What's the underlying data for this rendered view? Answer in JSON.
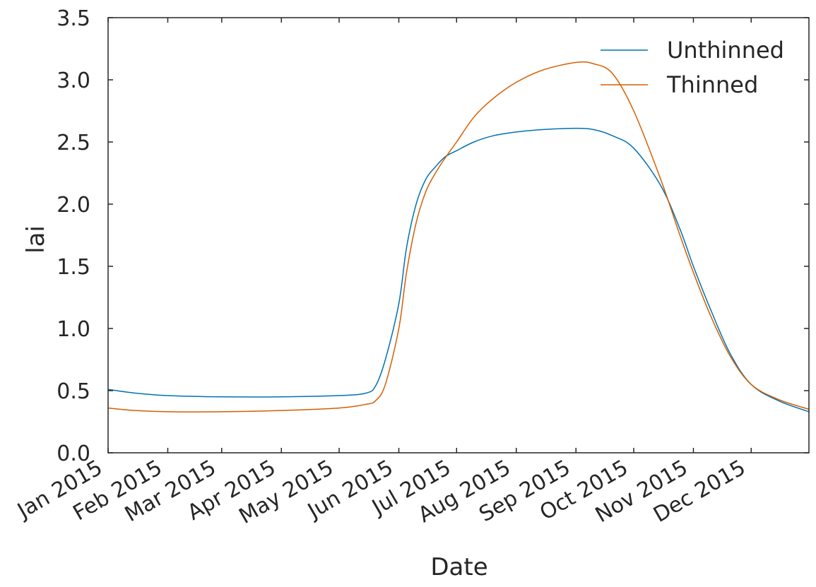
{
  "chart_data": {
    "type": "line",
    "xlabel": "Date",
    "ylabel": "lai",
    "xlim": [
      "2015-01-01",
      "2015-12-31"
    ],
    "ylim": [
      0,
      3.5
    ],
    "yticks": [
      0.0,
      0.5,
      1.0,
      1.5,
      2.0,
      2.5,
      3.0,
      3.5
    ],
    "ytick_labels": [
      "0.0",
      "0.5",
      "1.0",
      "1.5",
      "2.0",
      "2.5",
      "3.0",
      "3.5"
    ],
    "xticks": [
      "2015-01-01",
      "2015-02-01",
      "2015-03-01",
      "2015-04-01",
      "2015-05-01",
      "2015-06-01",
      "2015-07-01",
      "2015-08-01",
      "2015-09-01",
      "2015-10-01",
      "2015-11-01",
      "2015-12-01"
    ],
    "xtick_labels": [
      "Jan 2015",
      "Feb 2015",
      "Mar 2015",
      "Apr 2015",
      "May 2015",
      "Jun 2015",
      "Jul 2015",
      "Aug 2015",
      "Sep 2015",
      "Oct 2015",
      "Nov 2015",
      "Dec 2015"
    ],
    "legend_position": "top-right",
    "grid": false,
    "series": [
      {
        "name": "Unthinned",
        "color": "#0072b2",
        "x": [
          "2015-01-01",
          "2015-01-15",
          "2015-02-01",
          "2015-03-01",
          "2015-04-01",
          "2015-05-01",
          "2015-05-15",
          "2015-05-20",
          "2015-05-25",
          "2015-06-01",
          "2015-06-05",
          "2015-06-10",
          "2015-06-15",
          "2015-06-20",
          "2015-06-25",
          "2015-07-01",
          "2015-07-10",
          "2015-07-20",
          "2015-08-01",
          "2015-08-15",
          "2015-09-01",
          "2015-09-10",
          "2015-09-20",
          "2015-10-01",
          "2015-10-15",
          "2015-10-25",
          "2015-11-01",
          "2015-11-10",
          "2015-11-20",
          "2015-12-01",
          "2015-12-15",
          "2015-12-31"
        ],
        "y": [
          0.51,
          0.48,
          0.46,
          0.45,
          0.45,
          0.46,
          0.48,
          0.54,
          0.75,
          1.2,
          1.65,
          2.0,
          2.2,
          2.3,
          2.38,
          2.43,
          2.5,
          2.55,
          2.58,
          2.6,
          2.61,
          2.6,
          2.55,
          2.45,
          2.15,
          1.8,
          1.5,
          1.15,
          0.8,
          0.55,
          0.42,
          0.33
        ]
      },
      {
        "name": "Thinned",
        "color": "#d55e00",
        "x": [
          "2015-01-01",
          "2015-01-15",
          "2015-02-01",
          "2015-03-01",
          "2015-04-01",
          "2015-05-01",
          "2015-05-15",
          "2015-05-20",
          "2015-05-25",
          "2015-06-01",
          "2015-06-05",
          "2015-06-10",
          "2015-06-15",
          "2015-06-20",
          "2015-06-25",
          "2015-07-01",
          "2015-07-10",
          "2015-07-20",
          "2015-08-01",
          "2015-08-15",
          "2015-09-01",
          "2015-09-10",
          "2015-09-20",
          "2015-10-01",
          "2015-10-15",
          "2015-10-25",
          "2015-11-01",
          "2015-11-10",
          "2015-11-20",
          "2015-12-01",
          "2015-12-15",
          "2015-12-31"
        ],
        "y": [
          0.36,
          0.34,
          0.33,
          0.33,
          0.34,
          0.36,
          0.39,
          0.42,
          0.55,
          1.0,
          1.45,
          1.85,
          2.1,
          2.25,
          2.37,
          2.5,
          2.7,
          2.85,
          2.98,
          3.08,
          3.14,
          3.13,
          3.05,
          2.75,
          2.2,
          1.75,
          1.45,
          1.1,
          0.78,
          0.55,
          0.43,
          0.35
        ]
      }
    ]
  }
}
